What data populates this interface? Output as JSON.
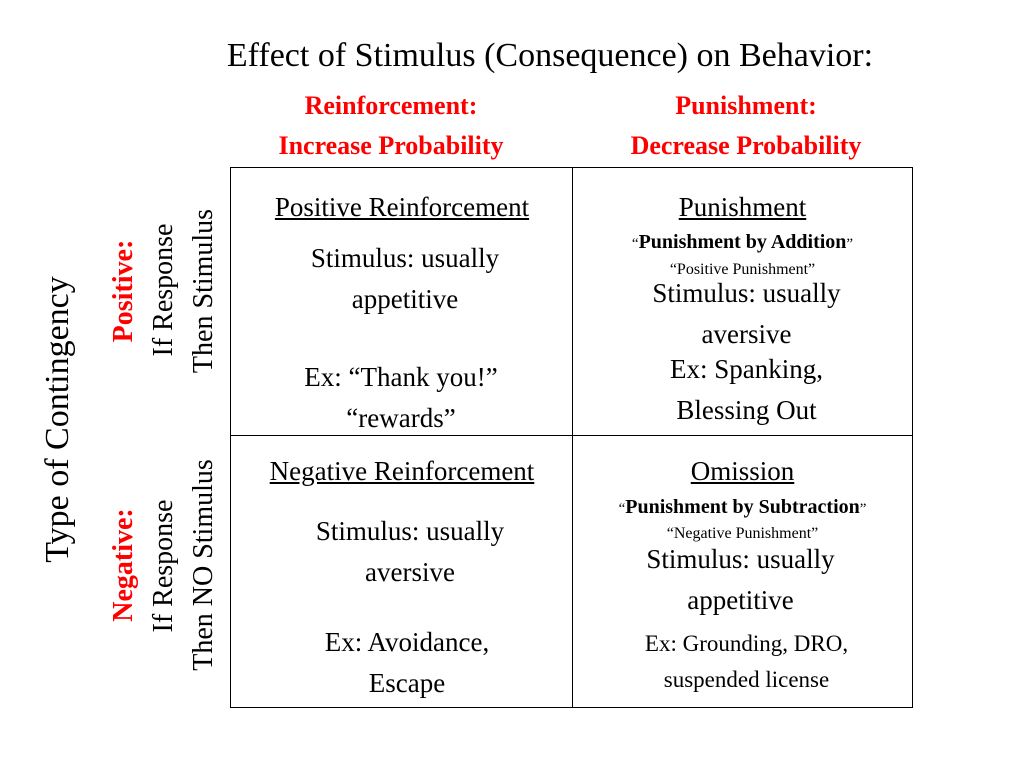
{
  "title": "Effect of Stimulus (Consequence) on Behavior:",
  "columns": {
    "reinforcement": {
      "line1": "Reinforcement:",
      "line2": "Increase Probability"
    },
    "punishment": {
      "line1": "Punishment:",
      "line2": "Decrease Probability"
    }
  },
  "row_axis_label": "Type of Contingency",
  "rows": {
    "positive": {
      "label": "Positive:",
      "line1": "If Response",
      "line2": "Then Stimulus"
    },
    "negative": {
      "label": "Negative:",
      "line1": "If Response",
      "line2": "Then NO Stimulus"
    }
  },
  "cells": {
    "positive_reinforcement": {
      "title": "Positive Reinforcement",
      "stimulus_line1": "Stimulus: usually",
      "stimulus_line2": "appetitive",
      "example_line1": "Ex: “Thank you!”",
      "example_line2": "“rewards”"
    },
    "punishment": {
      "title": "Punishment",
      "alt_name": "Punishment by Addition",
      "alt_name_2": "“Positive Punishment”",
      "stimulus_line1": "Stimulus: usually",
      "stimulus_line2": "aversive",
      "example_line1": "Ex: Spanking,",
      "example_line2": "Blessing Out"
    },
    "negative_reinforcement": {
      "title": "Negative Reinforcement",
      "stimulus_line1": "Stimulus: usually",
      "stimulus_line2": "aversive",
      "example_line1": "Ex: Avoidance,",
      "example_line2": "Escape"
    },
    "omission": {
      "title": "Omission",
      "alt_name": "Punishment by Subtraction",
      "alt_name_2": "“Negative Punishment”",
      "stimulus_line1": "Stimulus: usually",
      "stimulus_line2": "appetitive",
      "example_line1": "Ex: Grounding, DRO,",
      "example_line2": "suspended license"
    }
  },
  "colors": {
    "accent": "#ff0000",
    "text": "#000000",
    "background": "#ffffff"
  }
}
